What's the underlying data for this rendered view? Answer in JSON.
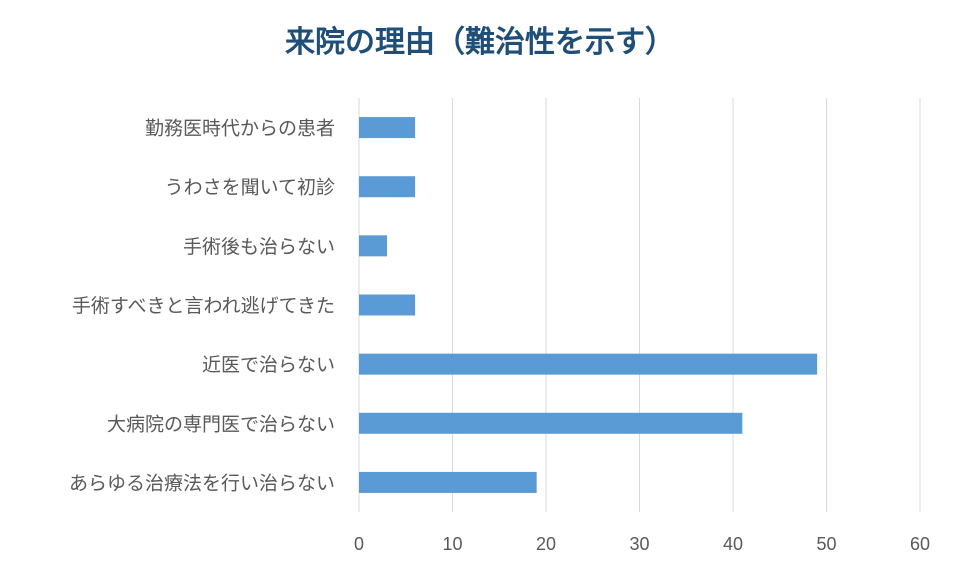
{
  "chart_data": {
    "type": "bar",
    "orientation": "horizontal",
    "title": "来院の理由（難治性を示す）",
    "categories": [
      "勤務医時代からの患者",
      "うわさを聞いて初診",
      "手術後も治らない",
      "手術すべきと言われ逃げてきた",
      "近医で治らない",
      "大病院の専門医で治らない",
      "あらゆる治療法を行い治らない"
    ],
    "values": [
      6,
      6,
      3,
      6,
      49,
      41,
      19
    ],
    "x_ticks": [
      "0",
      "10",
      "20",
      "30",
      "40",
      "50",
      "60"
    ],
    "xlim": [
      0,
      60
    ],
    "grid": true,
    "legend": "none"
  },
  "colors": {
    "bar": "#5b9bd5",
    "title": "#1f4e79",
    "gridline": "#d9d9d9",
    "axis_text": "#595959"
  }
}
